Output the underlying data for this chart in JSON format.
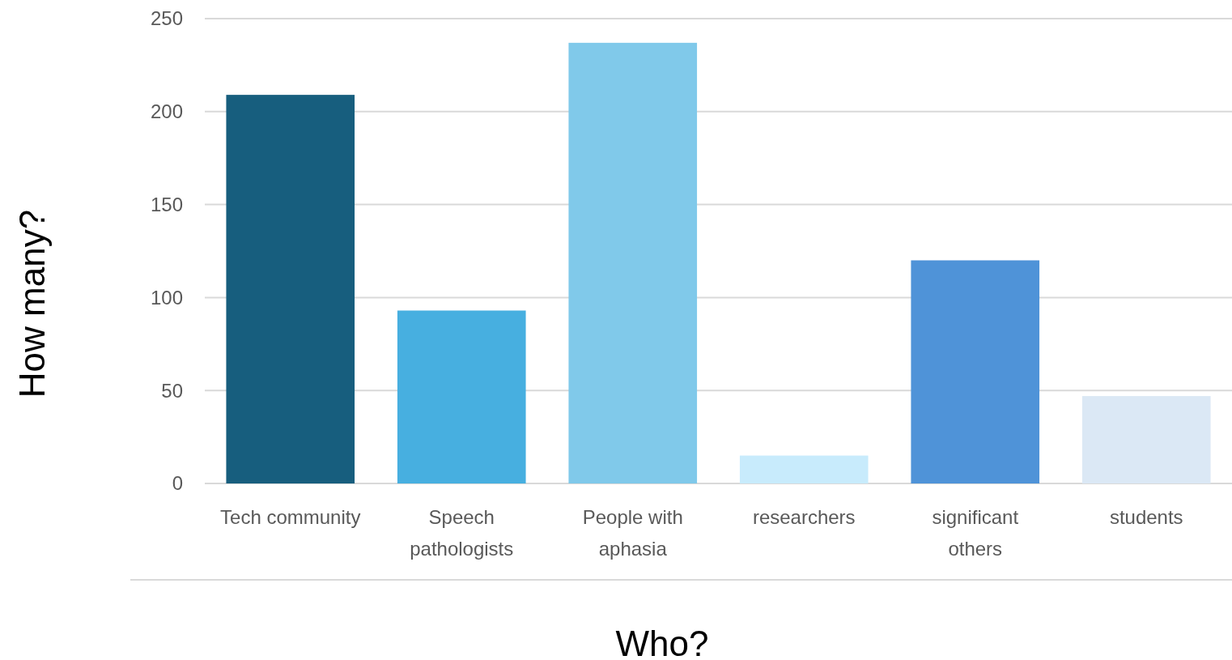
{
  "chart_data": {
    "type": "bar",
    "xlabel": "Who?",
    "ylabel": "How many?",
    "categories": [
      "Tech community",
      "Speech pathologists",
      "People with aphasia",
      "researchers",
      "significant others",
      "students"
    ],
    "values": [
      209,
      93,
      237,
      15,
      120,
      47
    ],
    "colors": [
      "#175e7e",
      "#47afe0",
      "#80c9ea",
      "#c8ebfc",
      "#4f93d8",
      "#dbe8f5"
    ],
    "ylim": [
      0,
      250
    ],
    "yticks": [
      0,
      50,
      100,
      150,
      200,
      250
    ],
    "grid": "y"
  }
}
